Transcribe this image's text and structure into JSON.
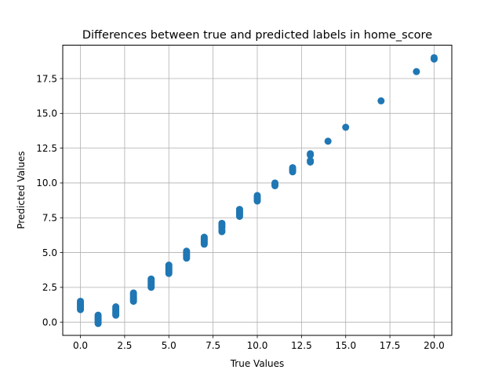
{
  "chart_data": {
    "type": "scatter",
    "title": "Differences between true and predicted labels in home_score",
    "xlabel": "True Values",
    "ylabel": "Predicted Values",
    "xlim": [
      -1.0,
      21.0
    ],
    "ylim": [
      -0.95,
      19.9
    ],
    "xticks": [
      "0.0",
      "2.5",
      "5.0",
      "7.5",
      "10.0",
      "12.5",
      "15.0",
      "17.5",
      "20.0"
    ],
    "yticks": [
      "0.0",
      "2.5",
      "5.0",
      "7.5",
      "10.0",
      "12.5",
      "15.0",
      "17.5"
    ],
    "grid": true,
    "marker_color": "#1f77b4",
    "points": [
      [
        0,
        0.9
      ],
      [
        0,
        1.0
      ],
      [
        0,
        1.1
      ],
      [
        0,
        1.2
      ],
      [
        0,
        1.3
      ],
      [
        0,
        1.4
      ],
      [
        0,
        1.5
      ],
      [
        1,
        -0.1
      ],
      [
        1,
        0.0
      ],
      [
        1,
        0.1
      ],
      [
        1,
        0.2
      ],
      [
        1,
        0.3
      ],
      [
        1,
        0.4
      ],
      [
        1,
        0.5
      ],
      [
        2,
        0.5
      ],
      [
        2,
        0.6
      ],
      [
        2,
        0.7
      ],
      [
        2,
        0.8
      ],
      [
        2,
        0.9
      ],
      [
        2,
        1.0
      ],
      [
        2,
        1.1
      ],
      [
        3,
        1.5
      ],
      [
        3,
        1.6
      ],
      [
        3,
        1.7
      ],
      [
        3,
        1.8
      ],
      [
        3,
        1.9
      ],
      [
        3,
        2.0
      ],
      [
        3,
        2.1
      ],
      [
        4,
        2.5
      ],
      [
        4,
        2.6
      ],
      [
        4,
        2.7
      ],
      [
        4,
        2.8
      ],
      [
        4,
        2.9
      ],
      [
        4,
        3.0
      ],
      [
        4,
        3.1
      ],
      [
        5,
        3.5
      ],
      [
        5,
        3.6
      ],
      [
        5,
        3.7
      ],
      [
        5,
        3.8
      ],
      [
        5,
        3.9
      ],
      [
        5,
        4.0
      ],
      [
        5,
        4.1
      ],
      [
        6,
        4.6
      ],
      [
        6,
        4.7
      ],
      [
        6,
        4.8
      ],
      [
        6,
        4.9
      ],
      [
        6,
        5.0
      ],
      [
        6,
        5.1
      ],
      [
        7,
        5.6
      ],
      [
        7,
        5.7
      ],
      [
        7,
        5.8
      ],
      [
        7,
        5.9
      ],
      [
        7,
        6.0
      ],
      [
        7,
        6.1
      ],
      [
        8,
        6.5
      ],
      [
        8,
        6.6
      ],
      [
        8,
        6.8
      ],
      [
        8,
        6.9
      ],
      [
        8,
        7.0
      ],
      [
        8,
        7.1
      ],
      [
        9,
        7.6
      ],
      [
        9,
        7.7
      ],
      [
        9,
        7.8
      ],
      [
        9,
        7.9
      ],
      [
        9,
        8.0
      ],
      [
        9,
        8.1
      ],
      [
        10,
        8.7
      ],
      [
        10,
        8.8
      ],
      [
        10,
        8.9
      ],
      [
        10,
        9.0
      ],
      [
        10,
        9.1
      ],
      [
        11,
        9.8
      ],
      [
        11,
        9.9
      ],
      [
        11,
        10.0
      ],
      [
        12,
        10.8
      ],
      [
        12,
        10.9
      ],
      [
        12,
        11.0
      ],
      [
        12,
        11.1
      ],
      [
        13,
        11.5
      ],
      [
        13,
        11.6
      ],
      [
        13,
        12.0
      ],
      [
        13,
        12.1
      ],
      [
        14,
        13.0
      ],
      [
        15,
        14.0
      ],
      [
        17,
        15.9
      ],
      [
        19,
        18.0
      ],
      [
        20,
        18.9
      ],
      [
        20,
        19.0
      ]
    ]
  }
}
